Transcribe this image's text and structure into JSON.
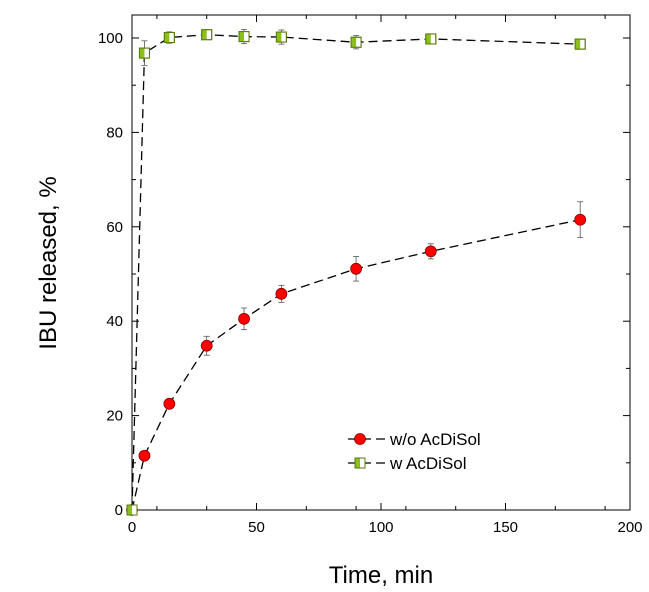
{
  "chart_data": {
    "type": "scatter",
    "xlabel": "Time, min",
    "ylabel": "IBU released, %",
    "xlim": [
      0,
      200
    ],
    "ylim": [
      0,
      105
    ],
    "xticks": [
      0,
      50,
      100,
      150,
      200
    ],
    "yticks": [
      0,
      20,
      40,
      60,
      80,
      100
    ],
    "grid": false,
    "legend_position": "lower-right",
    "series": [
      {
        "name": "w/o AcDiSol",
        "marker": "circle",
        "color": "#ff0000",
        "line": "dashed",
        "x": [
          0,
          5,
          15,
          30,
          45,
          60,
          90,
          120,
          180
        ],
        "y": [
          0,
          11.5,
          22.5,
          34.8,
          40.5,
          45.8,
          51.1,
          54.8,
          61.5
        ],
        "err": [
          0,
          0,
          0.8,
          2.0,
          2.3,
          1.8,
          2.6,
          1.6,
          3.8
        ]
      },
      {
        "name": "w AcDiSol",
        "marker": "half-filled-square",
        "color": "#8bbf1a",
        "line": "dashed",
        "x": [
          0,
          5,
          15,
          30,
          45,
          60,
          90,
          120,
          180
        ],
        "y": [
          0,
          96.8,
          100.1,
          100.7,
          100.3,
          100.2,
          99.1,
          99.8,
          98.7
        ],
        "err": [
          0,
          2.6,
          1.2,
          0.8,
          1.5,
          1.5,
          1.4,
          1.0,
          0.8
        ]
      }
    ]
  }
}
